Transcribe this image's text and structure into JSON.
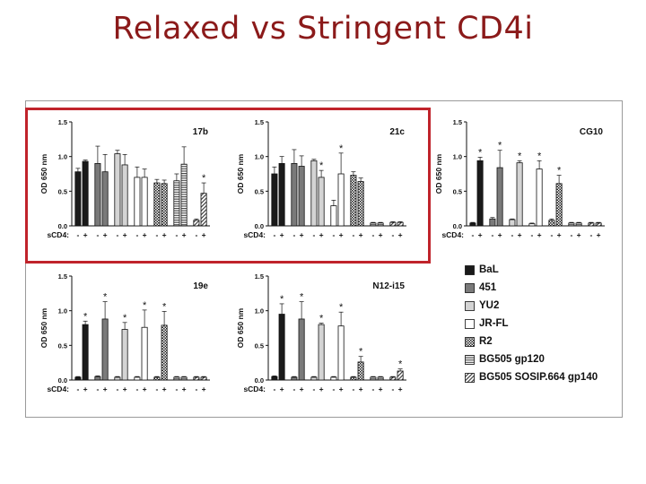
{
  "slide": {
    "title": "Relaxed vs Stringent CD4i"
  },
  "legend": [
    {
      "name": "BaL",
      "pattern": "black"
    },
    {
      "name": "451",
      "pattern": "gray"
    },
    {
      "name": "YU2",
      "pattern": "light"
    },
    {
      "name": "JR-FL",
      "pattern": "white"
    },
    {
      "name": "R2",
      "pattern": "check"
    },
    {
      "name": "BG505 gp120",
      "pattern": "hstripe"
    },
    {
      "name": "BG505 SOSIP.664 gp140",
      "pattern": "diag"
    }
  ],
  "chart_data": [
    {
      "type": "bar",
      "title": "17b",
      "ylabel": "OD 650 nm",
      "xlabel": "sCD4:",
      "ylim": [
        0,
        1.5
      ],
      "yticks": [
        "0.0",
        "0.5",
        "1.0",
        "1.5"
      ],
      "group_labels": [
        "- +",
        "- +",
        "- +",
        "- +",
        "- +",
        "- +",
        "- +"
      ],
      "series": [
        {
          "name": "BaL",
          "values": [
            0.78,
            0.93
          ],
          "errors": [
            0.05,
            0.02
          ]
        },
        {
          "name": "451",
          "values": [
            0.9,
            0.78
          ],
          "errors": [
            0.25,
            0.25
          ]
        },
        {
          "name": "YU2",
          "values": [
            1.04,
            0.88
          ],
          "errors": [
            0.05,
            0.15
          ]
        },
        {
          "name": "JR-FL",
          "values": [
            0.7,
            0.7
          ],
          "errors": [
            0.15,
            0.12
          ]
        },
        {
          "name": "R2",
          "values": [
            0.62,
            0.61
          ],
          "errors": [
            0.05,
            0.05
          ]
        },
        {
          "name": "BG505 gp120",
          "values": [
            0.65,
            0.89
          ],
          "errors": [
            0.1,
            0.25
          ]
        },
        {
          "name": "BG505 SOSIP.664 gp140",
          "values": [
            0.08,
            0.47
          ],
          "errors": [
            0.02,
            0.15
          ]
        }
      ],
      "annotations": [
        {
          "series": "BG505 SOSIP.664 gp140",
          "bar": "+",
          "text": "*"
        }
      ]
    },
    {
      "type": "bar",
      "title": "21c",
      "ylabel": "OD 650 nm",
      "xlabel": "sCD4:",
      "ylim": [
        0,
        1.5
      ],
      "yticks": [
        "0.0",
        "0.5",
        "1.0",
        "1.5"
      ],
      "group_labels": [
        "- +",
        "- +",
        "- +",
        "- +",
        "- +",
        "- +",
        "- +"
      ],
      "series": [
        {
          "name": "BaL",
          "values": [
            0.75,
            0.9
          ],
          "errors": [
            0.1,
            0.1
          ]
        },
        {
          "name": "451",
          "values": [
            0.9,
            0.86
          ],
          "errors": [
            0.2,
            0.15
          ]
        },
        {
          "name": "YU2",
          "values": [
            0.94,
            0.7
          ],
          "errors": [
            0.02,
            0.1
          ]
        },
        {
          "name": "JR-FL",
          "values": [
            0.29,
            0.75
          ],
          "errors": [
            0.08,
            0.3
          ]
        },
        {
          "name": "R2",
          "values": [
            0.73,
            0.64
          ],
          "errors": [
            0.05,
            0.05
          ]
        },
        {
          "name": "BG505 gp120",
          "values": [
            0.04,
            0.04
          ],
          "errors": [
            0.01,
            0.01
          ]
        },
        {
          "name": "BG505 SOSIP.664 gp140",
          "values": [
            0.05,
            0.05
          ],
          "errors": [
            0.01,
            0.01
          ]
        }
      ],
      "annotations": [
        {
          "series": "YU2",
          "bar": "+",
          "text": "*"
        },
        {
          "series": "JR-FL",
          "bar": "+",
          "text": "*"
        }
      ]
    },
    {
      "type": "bar",
      "title": "CG10",
      "ylabel": "OD 650 nm",
      "xlabel": "sCD4:",
      "ylim": [
        0,
        1.5
      ],
      "yticks": [
        "0.0",
        "0.5",
        "1.0",
        "1.5"
      ],
      "group_labels": [
        "- +",
        "- +",
        "- +",
        "- +",
        "- +",
        "- +",
        "- +"
      ],
      "series": [
        {
          "name": "BaL",
          "values": [
            0.04,
            0.94
          ],
          "errors": [
            0.01,
            0.05
          ]
        },
        {
          "name": "451",
          "values": [
            0.1,
            0.84
          ],
          "errors": [
            0.02,
            0.25
          ]
        },
        {
          "name": "YU2",
          "values": [
            0.09,
            0.91
          ],
          "errors": [
            0.01,
            0.03
          ]
        },
        {
          "name": "JR-FL",
          "values": [
            0.03,
            0.82
          ],
          "errors": [
            0.01,
            0.12
          ]
        },
        {
          "name": "R2",
          "values": [
            0.08,
            0.61
          ],
          "errors": [
            0.02,
            0.12
          ]
        },
        {
          "name": "BG505 gp120",
          "values": [
            0.04,
            0.04
          ],
          "errors": [
            0.01,
            0.01
          ]
        },
        {
          "name": "BG505 SOSIP.664 gp140",
          "values": [
            0.04,
            0.04
          ],
          "errors": [
            0.01,
            0.01
          ]
        }
      ],
      "annotations": [
        {
          "series": "BaL",
          "bar": "+",
          "text": "*"
        },
        {
          "series": "451",
          "bar": "+",
          "text": "*"
        },
        {
          "series": "YU2",
          "bar": "+",
          "text": "*"
        },
        {
          "series": "JR-FL",
          "bar": "+",
          "text": "*"
        },
        {
          "series": "R2",
          "bar": "+",
          "text": "*"
        }
      ]
    },
    {
      "type": "bar",
      "title": "19e",
      "ylabel": "OD 650 nm",
      "xlabel": "sCD4:",
      "ylim": [
        0,
        1.5
      ],
      "yticks": [
        "0.0",
        "0.5",
        "1.0",
        "1.5"
      ],
      "group_labels": [
        "- +",
        "- +",
        "- +",
        "- +",
        "- +",
        "- +",
        "- +"
      ],
      "series": [
        {
          "name": "BaL",
          "values": [
            0.04,
            0.8
          ],
          "errors": [
            0.01,
            0.05
          ]
        },
        {
          "name": "451",
          "values": [
            0.05,
            0.88
          ],
          "errors": [
            0.01,
            0.25
          ]
        },
        {
          "name": "YU2",
          "values": [
            0.04,
            0.73
          ],
          "errors": [
            0.01,
            0.1
          ]
        },
        {
          "name": "JR-FL",
          "values": [
            0.04,
            0.76
          ],
          "errors": [
            0.01,
            0.25
          ]
        },
        {
          "name": "R2",
          "values": [
            0.04,
            0.79
          ],
          "errors": [
            0.01,
            0.2
          ]
        },
        {
          "name": "BG505 gp120",
          "values": [
            0.04,
            0.04
          ],
          "errors": [
            0.01,
            0.01
          ]
        },
        {
          "name": "BG505 SOSIP.664 gp140",
          "values": [
            0.04,
            0.04
          ],
          "errors": [
            0.01,
            0.01
          ]
        }
      ],
      "annotations": [
        {
          "series": "BaL",
          "bar": "+",
          "text": "*"
        },
        {
          "series": "451",
          "bar": "+",
          "text": "*"
        },
        {
          "series": "YU2",
          "bar": "+",
          "text": "*"
        },
        {
          "series": "JR-FL",
          "bar": "+",
          "text": "*"
        },
        {
          "series": "R2",
          "bar": "+",
          "text": "*"
        }
      ]
    },
    {
      "type": "bar",
      "title": "N12-i15",
      "ylabel": "OD 650 nm",
      "xlabel": "sCD4:",
      "ylim": [
        0,
        1.5
      ],
      "yticks": [
        "0.0",
        "0.5",
        "1.0",
        "1.5"
      ],
      "group_labels": [
        "- +",
        "- +",
        "- +",
        "- +",
        "- +",
        "- +",
        "- +"
      ],
      "series": [
        {
          "name": "BaL",
          "values": [
            0.05,
            0.95
          ],
          "errors": [
            0.01,
            0.15
          ]
        },
        {
          "name": "451",
          "values": [
            0.04,
            0.88
          ],
          "errors": [
            0.01,
            0.25
          ]
        },
        {
          "name": "YU2",
          "values": [
            0.04,
            0.8
          ],
          "errors": [
            0.01,
            0.02
          ]
        },
        {
          "name": "JR-FL",
          "values": [
            0.04,
            0.78
          ],
          "errors": [
            0.01,
            0.2
          ]
        },
        {
          "name": "R2",
          "values": [
            0.04,
            0.26
          ],
          "errors": [
            0.01,
            0.08
          ]
        },
        {
          "name": "BG505 gp120",
          "values": [
            0.04,
            0.04
          ],
          "errors": [
            0.01,
            0.01
          ]
        },
        {
          "name": "BG505 SOSIP.664 gp140",
          "values": [
            0.04,
            0.13
          ],
          "errors": [
            0.01,
            0.03
          ]
        }
      ],
      "annotations": [
        {
          "series": "BaL",
          "bar": "+",
          "text": "*"
        },
        {
          "series": "451",
          "bar": "+",
          "text": "*"
        },
        {
          "series": "YU2",
          "bar": "+",
          "text": "*"
        },
        {
          "series": "JR-FL",
          "bar": "+",
          "text": "*"
        },
        {
          "series": "R2",
          "bar": "+",
          "text": "*"
        },
        {
          "series": "BG505 SOSIP.664 gp140",
          "bar": "+",
          "text": "*"
        }
      ]
    }
  ]
}
